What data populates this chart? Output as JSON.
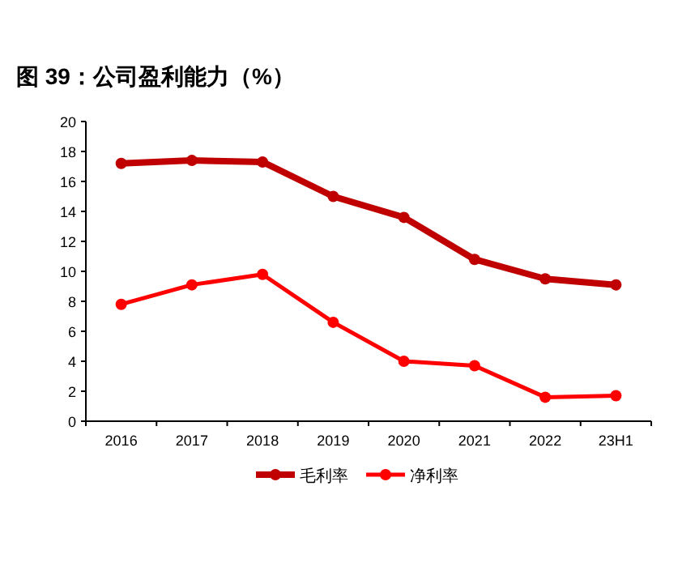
{
  "chart_data": {
    "type": "line",
    "title": "图 39：公司盈利能力（%）",
    "categories": [
      "2016",
      "2017",
      "2018",
      "2019",
      "2020",
      "2021",
      "2022",
      "23H1"
    ],
    "series": [
      {
        "name": "毛利率",
        "color": "#c00000",
        "values": [
          17.2,
          17.4,
          17.3,
          15.0,
          13.6,
          10.8,
          9.5,
          9.1
        ]
      },
      {
        "name": "净利率",
        "color": "#ff0000",
        "values": [
          7.8,
          9.1,
          9.8,
          6.6,
          4.0,
          3.7,
          1.6,
          1.7
        ]
      }
    ],
    "ylim": [
      0,
      20
    ],
    "yticks": [
      0,
      2,
      4,
      6,
      8,
      10,
      12,
      14,
      16,
      18,
      20
    ],
    "grid": false,
    "legend": "bottom",
    "marker": "circle",
    "line_style": "solid"
  }
}
